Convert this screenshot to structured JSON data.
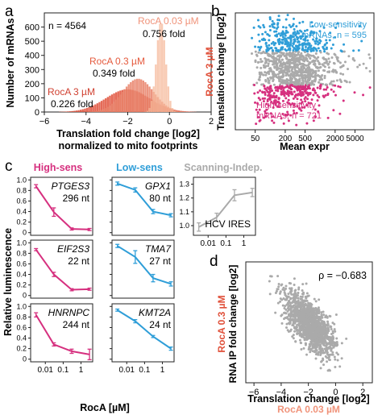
{
  "colors": {
    "pink": "#d6307f",
    "blue": "#2f9ed8",
    "gray": "#aaaaaa",
    "roca3": "#e0503a",
    "roca03": "#e9826a",
    "roca003": "#f6b89a",
    "dark": "#222222"
  },
  "panel_labels": {
    "a": "a",
    "b": "b",
    "c": "c",
    "d": "d"
  },
  "chart_data": [
    {
      "panel": "a",
      "type": "bar",
      "xlabel": "Translation fold change [log2]",
      "xlabel2": "normalized to mito footprints",
      "ylabel": "Number of mRNAs",
      "n_label": "n = 4564",
      "xlim": [
        -6,
        2
      ],
      "ylim": [
        0,
        700
      ],
      "xticks": [
        "-6",
        "-4",
        "-2",
        "0",
        "2"
      ],
      "yticks": [
        "0",
        "100",
        "200",
        "300",
        "400",
        "500",
        "600"
      ],
      "bin_width": 0.1,
      "series": [
        {
          "name": "RocA 3 µM",
          "fold": "0.226 fold",
          "center": -2.0,
          "width": 1.05,
          "peak": 160
        },
        {
          "name": "RocA 0.3 µM",
          "fold": "0.349 fold",
          "center": -1.5,
          "width": 0.75,
          "peak": 235
        },
        {
          "name": "RocA 0.03 µM",
          "fold": "0.756 fold",
          "center": -0.4,
          "width": 0.22,
          "peak": 640
        }
      ]
    },
    {
      "panel": "b",
      "type": "scatter",
      "xlabel": "Mean expr",
      "ylabel": "Translation change [log2]",
      "ylabel_prefix": "RocA 3 µM",
      "xticks": [
        "50",
        "200",
        "500",
        "2000",
        "5000"
      ],
      "low_label": "Low-sensitivity",
      "low_label2": "mRNAs, n = 595",
      "high_label": "High-sensitivity",
      "high_label2": "mRNAs, n = 721"
    },
    {
      "panel": "c",
      "type": "line",
      "header_high": "High-sens",
      "header_low": "Low-sens",
      "header_scan": "Scanning-Indep.",
      "ylabel": "Relative luminescence",
      "xlabel": "RocA [µM]",
      "x": [
        0.003,
        0.03,
        0.3,
        3
      ],
      "xticks": [
        "0.01",
        "0.1",
        "1"
      ],
      "yticks": [
        "0",
        "0.2",
        "0.4",
        "0.6",
        "0.8",
        "1.0"
      ],
      "scan_yticks": [
        "1.0",
        "1.1",
        "1.2",
        "1.3"
      ],
      "subplots": [
        {
          "gene": "PTGES3",
          "leader": "296 nt",
          "group": "high",
          "row": 0,
          "col": 0,
          "values": [
            0.88,
            0.39,
            0.07,
            0.06
          ],
          "err": [
            0.03,
            0.08,
            0.02,
            0.02
          ]
        },
        {
          "gene": "GPX1",
          "leader": "80 nt",
          "group": "low",
          "row": 0,
          "col": 1,
          "values": [
            0.93,
            0.81,
            0.4,
            0.33
          ],
          "err": [
            0.03,
            0.04,
            0.04,
            0.03
          ]
        },
        {
          "gene": "EIF2S3",
          "leader": "22 nt",
          "group": "high",
          "row": 1,
          "col": 0,
          "values": [
            0.87,
            0.4,
            0.11,
            0.12
          ],
          "err": [
            0.02,
            0.04,
            0.02,
            0.02
          ]
        },
        {
          "gene": "TMA7",
          "leader": "27 nt",
          "group": "low",
          "row": 1,
          "col": 1,
          "values": [
            0.94,
            0.73,
            0.33,
            0.22
          ],
          "err": [
            0.03,
            0.12,
            0.07,
            0.04
          ]
        },
        {
          "gene": "HNRNPC",
          "leader": "244 nt",
          "group": "high",
          "row": 2,
          "col": 0,
          "values": [
            0.84,
            0.28,
            0.15,
            0.09
          ],
          "err": [
            0.04,
            0.03,
            0.04,
            0.1
          ]
        },
        {
          "gene": "KMT2A",
          "leader": "24 nt",
          "group": "low",
          "row": 2,
          "col": 1,
          "values": [
            0.93,
            0.72,
            0.43,
            0.2
          ],
          "err": [
            0.02,
            0.03,
            0.02,
            0.03
          ]
        }
      ],
      "scan": {
        "label": "HCV IRES",
        "values": [
          0.99,
          1.06,
          1.22,
          1.24
        ],
        "err": [
          0.03,
          0.03,
          0.04,
          0.03
        ]
      }
    },
    {
      "panel": "d",
      "type": "scatter",
      "rho": "ρ = −0.683",
      "xlabel": "Translation change [log2]",
      "xlabel_suffix": "RocA 0.03 µM",
      "ylabel": "RNA IP fold change [log2]",
      "ylabel_prefix": "RocA 0.3 µM",
      "xticks": [
        "-6",
        "-4",
        "-2",
        "0",
        "2"
      ]
    }
  ]
}
